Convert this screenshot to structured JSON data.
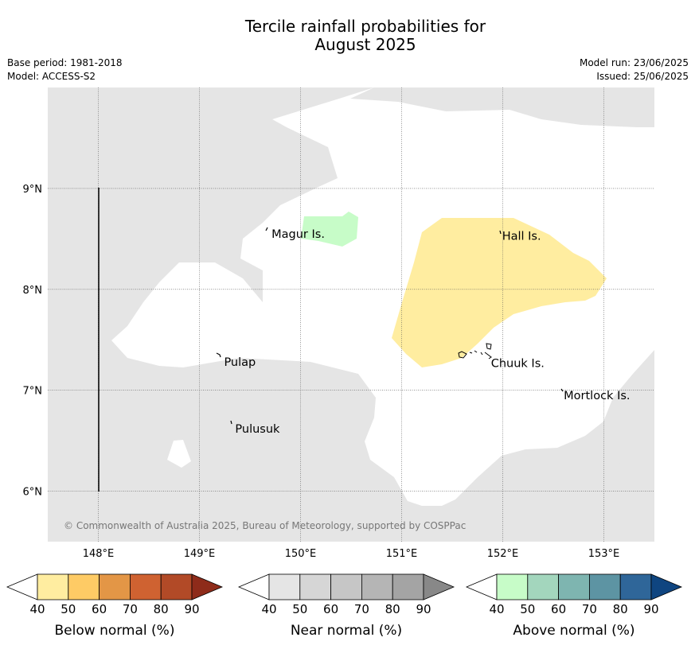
{
  "title_line1": "Tercile rainfall probabilities for",
  "title_line2": "August 2025",
  "base_period": "Base period: 1981-2018",
  "model": "Model: ACCESS-S2",
  "model_run": "Model run: 23/06/2025",
  "issued": "Issued: 25/06/2025",
  "copyright": "© Commonwealth of Australia 2025, Bureau of Meteorology, supported by COSPPac",
  "map": {
    "lon_range": [
      147.5,
      153.5
    ],
    "lat_range": [
      5.5,
      10.0
    ],
    "lon_ticks": [
      {
        "value": 148,
        "label": "148°E"
      },
      {
        "value": 149,
        "label": "149°E"
      },
      {
        "value": 150,
        "label": "150°E"
      },
      {
        "value": 151,
        "label": "151°E"
      },
      {
        "value": 152,
        "label": "152°E"
      },
      {
        "value": 153,
        "label": "153°E"
      }
    ],
    "lat_ticks": [
      {
        "value": 6,
        "label": "6°N"
      },
      {
        "value": 7,
        "label": "7°N"
      },
      {
        "value": 8,
        "label": "8°N"
      },
      {
        "value": 9,
        "label": "9°N"
      }
    ],
    "places": [
      {
        "name": "Magur Is.",
        "lon": 149.69,
        "lat": 8.55
      },
      {
        "name": "Hall Is.",
        "lon": 151.97,
        "lat": 8.53
      },
      {
        "name": "Pulap",
        "lon": 149.22,
        "lat": 7.28
      },
      {
        "name": "Chuuk Is.",
        "lon": 151.86,
        "lat": 7.27
      },
      {
        "name": "Mortlock Is.",
        "lon": 152.58,
        "lat": 6.95
      },
      {
        "name": "Pulusuk",
        "lon": 149.33,
        "lat": 6.62
      }
    ],
    "colors": {
      "near_normal": "#e5e5e5",
      "below_40_50": "#ffeda0",
      "above_40_50": "#c7fcc8"
    }
  },
  "colorbars": [
    {
      "label": "Below normal (%)",
      "ticks": [
        "40",
        "50",
        "60",
        "70",
        "80",
        "90"
      ],
      "colors": [
        "#ffeda0",
        "#fecb65",
        "#e39646",
        "#cf6231",
        "#b24a27",
        "#8e2b1a"
      ]
    },
    {
      "label": "Near normal (%)",
      "ticks": [
        "40",
        "50",
        "60",
        "70",
        "80",
        "90"
      ],
      "colors": [
        "#e5e5e5",
        "#d6d6d6",
        "#c6c6c6",
        "#b5b5b5",
        "#a4a4a4",
        "#888888"
      ]
    },
    {
      "label": "Above normal (%)",
      "ticks": [
        "40",
        "50",
        "60",
        "70",
        "80",
        "90"
      ],
      "colors": [
        "#c7fcc8",
        "#a3d6bd",
        "#7eb5b0",
        "#5d94a3",
        "#2f6699",
        "#0f4580"
      ]
    }
  ]
}
